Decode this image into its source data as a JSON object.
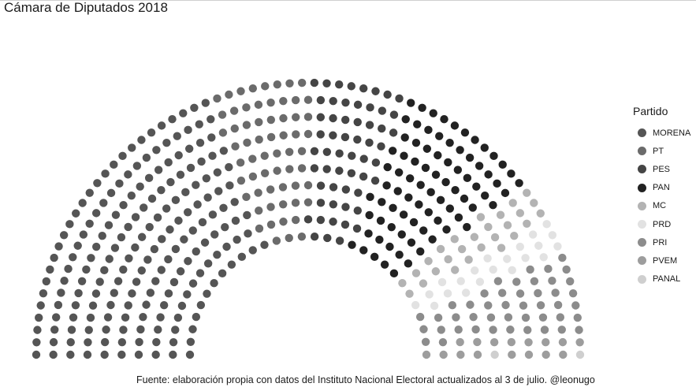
{
  "chart_data": {
    "type": "parliament",
    "title": "Cámara de Diputados 2018",
    "legend_title": "Partido",
    "legend_position": "right",
    "caption": "Fuente: elaboración propia con datos del Instituto Nacional Electoral actualizados al 3 de julio. @leonugo",
    "total_seats": 500,
    "series": [
      {
        "name": "MORENA",
        "seats": 191,
        "color": "#555555"
      },
      {
        "name": "PT",
        "seats": 61,
        "color": "#6b6b6b"
      },
      {
        "name": "PES",
        "seats": 56,
        "color": "#454545"
      },
      {
        "name": "PAN",
        "seats": 81,
        "color": "#222222"
      },
      {
        "name": "MC",
        "seats": 27,
        "color": "#b3b3b3"
      },
      {
        "name": "PRD",
        "seats": 21,
        "color": "#e2e2e2"
      },
      {
        "name": "PRI",
        "seats": 45,
        "color": "#8c8c8c"
      },
      {
        "name": "PVEM",
        "seats": 16,
        "color": "#9d9d9d"
      },
      {
        "name": "PANAL",
        "seats": 2,
        "color": "#cfcfcf"
      }
    ]
  }
}
